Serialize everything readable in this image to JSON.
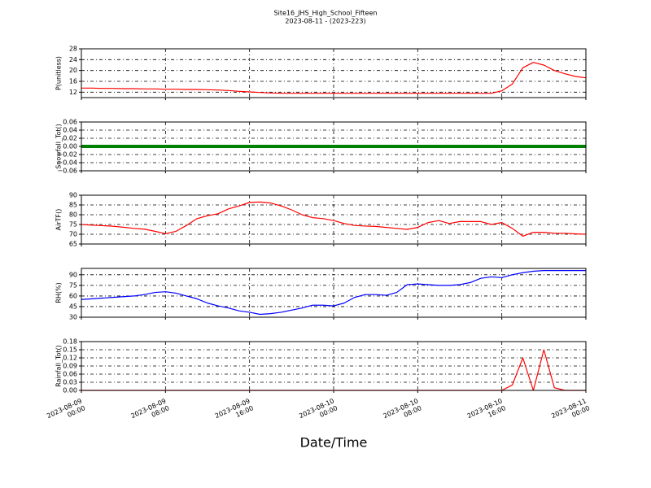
{
  "chart_data": [
    {
      "type": "line",
      "title": "Site16_JHS_High_School_Fifteen",
      "subtitle": "2023-08-11 - (2023-223)",
      "ylabel": "P(unitless)",
      "color": "#ff0000",
      "grid": true,
      "xlim": [
        "2023-08-09 00:00",
        "2023-08-11 00:00"
      ],
      "xticks": [
        "2023-08-09 00:00",
        "2023-08-09 08:00",
        "2023-08-09 16:00",
        "2023-08-10 00:00",
        "2023-08-10 08:00",
        "2023-08-10 16:00",
        "2023-08-11 00:00"
      ],
      "ylim": [
        10,
        28
      ],
      "yticks": [
        12,
        16,
        20,
        24,
        28
      ],
      "x": [
        "2023-08-09 00:00",
        "2023-08-09 01:00",
        "2023-08-09 02:00",
        "2023-08-09 03:00",
        "2023-08-09 04:00",
        "2023-08-09 05:00",
        "2023-08-09 06:00",
        "2023-08-09 07:00",
        "2023-08-09 08:00",
        "2023-08-09 09:00",
        "2023-08-09 10:00",
        "2023-08-09 11:00",
        "2023-08-09 12:00",
        "2023-08-09 13:00",
        "2023-08-09 14:00",
        "2023-08-09 15:00",
        "2023-08-09 16:00",
        "2023-08-09 17:00",
        "2023-08-09 18:00",
        "2023-08-09 19:00",
        "2023-08-09 20:00",
        "2023-08-09 21:00",
        "2023-08-09 22:00",
        "2023-08-09 23:00",
        "2023-08-10 00:00",
        "2023-08-10 01:00",
        "2023-08-10 02:00",
        "2023-08-10 03:00",
        "2023-08-10 04:00",
        "2023-08-10 05:00",
        "2023-08-10 06:00",
        "2023-08-10 07:00",
        "2023-08-10 08:00",
        "2023-08-10 09:00",
        "2023-08-10 10:00",
        "2023-08-10 11:00",
        "2023-08-10 12:00",
        "2023-08-10 13:00",
        "2023-08-10 14:00",
        "2023-08-10 15:00",
        "2023-08-10 16:00",
        "2023-08-10 17:00",
        "2023-08-10 18:00",
        "2023-08-10 19:00",
        "2023-08-10 20:00",
        "2023-08-10 21:00",
        "2023-08-10 22:00",
        "2023-08-10 23:00",
        "2023-08-11 00:00"
      ],
      "values": [
        13.5,
        13.5,
        13.4,
        13.4,
        13.3,
        13.3,
        13.2,
        13.2,
        13.1,
        13.1,
        13.0,
        13.0,
        12.9,
        12.8,
        12.6,
        12.3,
        12.1,
        11.9,
        11.7,
        11.6,
        11.6,
        11.6,
        11.6,
        11.6,
        11.6,
        11.6,
        11.6,
        11.6,
        11.6,
        11.6,
        11.6,
        11.6,
        11.6,
        11.6,
        11.6,
        11.6,
        11.6,
        11.6,
        11.6,
        11.6,
        12.5,
        15,
        21,
        23,
        22,
        20,
        18.8,
        17.8,
        17.3
      ]
    },
    {
      "type": "line",
      "ylabel": "Snowfall_Tot()",
      "color": "#008000",
      "grid": true,
      "xlim": [
        "2023-08-09 00:00",
        "2023-08-11 00:00"
      ],
      "xticks": [
        "2023-08-09 00:00",
        "2023-08-09 08:00",
        "2023-08-09 16:00",
        "2023-08-10 00:00",
        "2023-08-10 08:00",
        "2023-08-10 16:00",
        "2023-08-11 00:00"
      ],
      "ylim": [
        -0.06,
        0.06
      ],
      "yticks": [
        {
          "value": -0.06,
          "label": "−0.06"
        },
        {
          "value": -0.04,
          "label": "−0.04"
        },
        {
          "value": -0.02,
          "label": "−0.02"
        },
        {
          "value": 0,
          "label": "0.00"
        },
        0.02,
        0.04,
        0.06
      ],
      "x": [
        "2023-08-09 00:00",
        "2023-08-09 01:00",
        "2023-08-09 02:00",
        "2023-08-09 03:00",
        "2023-08-09 04:00",
        "2023-08-09 05:00",
        "2023-08-09 06:00",
        "2023-08-09 07:00",
        "2023-08-09 08:00",
        "2023-08-09 09:00",
        "2023-08-09 10:00",
        "2023-08-09 11:00",
        "2023-08-09 12:00",
        "2023-08-09 13:00",
        "2023-08-09 14:00",
        "2023-08-09 15:00",
        "2023-08-09 16:00",
        "2023-08-09 17:00",
        "2023-08-09 18:00",
        "2023-08-09 19:00",
        "2023-08-09 20:00",
        "2023-08-09 21:00",
        "2023-08-09 22:00",
        "2023-08-09 23:00",
        "2023-08-10 00:00",
        "2023-08-10 01:00",
        "2023-08-10 02:00",
        "2023-08-10 03:00",
        "2023-08-10 04:00",
        "2023-08-10 05:00",
        "2023-08-10 06:00",
        "2023-08-10 07:00",
        "2023-08-10 08:00",
        "2023-08-10 09:00",
        "2023-08-10 10:00",
        "2023-08-10 11:00",
        "2023-08-10 12:00",
        "2023-08-10 13:00",
        "2023-08-10 14:00",
        "2023-08-10 15:00",
        "2023-08-10 16:00",
        "2023-08-10 17:00",
        "2023-08-10 18:00",
        "2023-08-10 19:00",
        "2023-08-10 20:00",
        "2023-08-10 21:00",
        "2023-08-10 22:00",
        "2023-08-10 23:00",
        "2023-08-11 00:00"
      ],
      "values": [
        0,
        0,
        0,
        0,
        0,
        0,
        0,
        0,
        0,
        0,
        0,
        0,
        0,
        0,
        0,
        0,
        0,
        0,
        0,
        0,
        0,
        0,
        0,
        0,
        0,
        0,
        0,
        0,
        0,
        0,
        0,
        0,
        0,
        0,
        0,
        0,
        0,
        0,
        0,
        0,
        0,
        0,
        0,
        0,
        0,
        0,
        0,
        0,
        0
      ]
    },
    {
      "type": "line",
      "ylabel": "AirTF()",
      "color": "#ff0000",
      "grid": true,
      "xlim": [
        "2023-08-09 00:00",
        "2023-08-11 00:00"
      ],
      "xticks": [
        "2023-08-09 00:00",
        "2023-08-09 08:00",
        "2023-08-09 16:00",
        "2023-08-10 00:00",
        "2023-08-10 08:00",
        "2023-08-10 16:00",
        "2023-08-11 00:00"
      ],
      "ylim": [
        65,
        90
      ],
      "yticks": [
        65,
        70,
        75,
        80,
        85,
        90
      ],
      "x": [
        "2023-08-09 00:00",
        "2023-08-09 01:00",
        "2023-08-09 02:00",
        "2023-08-09 03:00",
        "2023-08-09 04:00",
        "2023-08-09 05:00",
        "2023-08-09 06:00",
        "2023-08-09 07:00",
        "2023-08-09 08:00",
        "2023-08-09 09:00",
        "2023-08-09 10:00",
        "2023-08-09 11:00",
        "2023-08-09 12:00",
        "2023-08-09 13:00",
        "2023-08-09 14:00",
        "2023-08-09 15:00",
        "2023-08-09 16:00",
        "2023-08-09 17:00",
        "2023-08-09 18:00",
        "2023-08-09 19:00",
        "2023-08-09 20:00",
        "2023-08-09 21:00",
        "2023-08-09 22:00",
        "2023-08-09 23:00",
        "2023-08-10 00:00",
        "2023-08-10 01:00",
        "2023-08-10 02:00",
        "2023-08-10 03:00",
        "2023-08-10 04:00",
        "2023-08-10 05:00",
        "2023-08-10 06:00",
        "2023-08-10 07:00",
        "2023-08-10 08:00",
        "2023-08-10 09:00",
        "2023-08-10 10:00",
        "2023-08-10 11:00",
        "2023-08-10 12:00",
        "2023-08-10 13:00",
        "2023-08-10 14:00",
        "2023-08-10 15:00",
        "2023-08-10 16:00",
        "2023-08-10 17:00",
        "2023-08-10 18:00",
        "2023-08-10 19:00",
        "2023-08-10 20:00",
        "2023-08-10 21:00",
        "2023-08-10 22:00",
        "2023-08-10 23:00",
        "2023-08-11 00:00"
      ],
      "values": [
        75,
        74.7,
        74.4,
        74.1,
        73.6,
        73,
        72.6,
        71.5,
        70.3,
        71.5,
        74.5,
        78,
        79.5,
        80.5,
        83,
        84.5,
        86.3,
        86.5,
        86,
        84.5,
        82.5,
        80,
        78.5,
        78,
        77,
        75.5,
        74.5,
        74.2,
        74,
        73.5,
        73,
        72.5,
        73.5,
        76,
        77,
        75.5,
        76.5,
        76.5,
        76.5,
        75,
        76,
        73,
        69,
        71,
        71,
        70.5,
        70.5,
        70.2,
        70
      ]
    },
    {
      "type": "line",
      "ylabel": "RH(%)",
      "color": "#0000ff",
      "grid": true,
      "xlim": [
        "2023-08-09 00:00",
        "2023-08-11 00:00"
      ],
      "xticks": [
        "2023-08-09 00:00",
        "2023-08-09 08:00",
        "2023-08-09 16:00",
        "2023-08-10 00:00",
        "2023-08-10 08:00",
        "2023-08-10 16:00",
        "2023-08-11 00:00"
      ],
      "ylim": [
        30,
        99
      ],
      "yticks": [
        30,
        45,
        60,
        75,
        90
      ],
      "x": [
        "2023-08-09 00:00",
        "2023-08-09 01:00",
        "2023-08-09 02:00",
        "2023-08-09 03:00",
        "2023-08-09 04:00",
        "2023-08-09 05:00",
        "2023-08-09 06:00",
        "2023-08-09 07:00",
        "2023-08-09 08:00",
        "2023-08-09 09:00",
        "2023-08-09 10:00",
        "2023-08-09 11:00",
        "2023-08-09 12:00",
        "2023-08-09 13:00",
        "2023-08-09 14:00",
        "2023-08-09 15:00",
        "2023-08-09 16:00",
        "2023-08-09 17:00",
        "2023-08-09 18:00",
        "2023-08-09 19:00",
        "2023-08-09 20:00",
        "2023-08-09 21:00",
        "2023-08-09 22:00",
        "2023-08-09 23:00",
        "2023-08-10 00:00",
        "2023-08-10 01:00",
        "2023-08-10 02:00",
        "2023-08-10 03:00",
        "2023-08-10 04:00",
        "2023-08-10 05:00",
        "2023-08-10 06:00",
        "2023-08-10 07:00",
        "2023-08-10 08:00",
        "2023-08-10 09:00",
        "2023-08-10 10:00",
        "2023-08-10 11:00",
        "2023-08-10 12:00",
        "2023-08-10 13:00",
        "2023-08-10 14:00",
        "2023-08-10 15:00",
        "2023-08-10 16:00",
        "2023-08-10 17:00",
        "2023-08-10 18:00",
        "2023-08-10 19:00",
        "2023-08-10 20:00",
        "2023-08-10 21:00",
        "2023-08-10 22:00",
        "2023-08-10 23:00",
        "2023-08-11 00:00"
      ],
      "values": [
        55,
        56,
        57,
        58,
        59,
        60,
        62,
        65,
        66,
        64,
        60,
        56,
        50,
        46,
        43,
        39,
        37,
        34,
        35,
        37,
        40,
        43,
        47,
        47,
        46,
        50,
        58,
        62,
        62,
        61,
        65,
        76,
        77,
        76,
        75,
        75,
        76,
        79,
        85,
        87,
        86,
        90,
        93,
        95,
        96,
        96,
        96,
        96,
        96
      ]
    },
    {
      "type": "line",
      "ylabel": "Rainfall_Tot()",
      "xlabel": "Date/Time",
      "color": "#ff0000",
      "grid": true,
      "xlim": [
        "2023-08-09 00:00",
        "2023-08-11 00:00"
      ],
      "xticks": [
        "2023-08-09 00:00",
        "2023-08-09 08:00",
        "2023-08-09 16:00",
        "2023-08-10 00:00",
        "2023-08-10 08:00",
        "2023-08-10 16:00",
        "2023-08-11 00:00"
      ],
      "ylim": [
        0,
        0.18
      ],
      "yticks": [
        {
          "value": 0,
          "label": "0.00"
        },
        0.03,
        0.06,
        0.09,
        0.12,
        0.15,
        0.18
      ],
      "x": [
        "2023-08-09 00:00",
        "2023-08-09 01:00",
        "2023-08-09 02:00",
        "2023-08-09 03:00",
        "2023-08-09 04:00",
        "2023-08-09 05:00",
        "2023-08-09 06:00",
        "2023-08-09 07:00",
        "2023-08-09 08:00",
        "2023-08-09 09:00",
        "2023-08-09 10:00",
        "2023-08-09 11:00",
        "2023-08-09 12:00",
        "2023-08-09 13:00",
        "2023-08-09 14:00",
        "2023-08-09 15:00",
        "2023-08-09 16:00",
        "2023-08-09 17:00",
        "2023-08-09 18:00",
        "2023-08-09 19:00",
        "2023-08-09 20:00",
        "2023-08-09 21:00",
        "2023-08-09 22:00",
        "2023-08-09 23:00",
        "2023-08-10 00:00",
        "2023-08-10 01:00",
        "2023-08-10 02:00",
        "2023-08-10 03:00",
        "2023-08-10 04:00",
        "2023-08-10 05:00",
        "2023-08-10 06:00",
        "2023-08-10 07:00",
        "2023-08-10 08:00",
        "2023-08-10 09:00",
        "2023-08-10 10:00",
        "2023-08-10 11:00",
        "2023-08-10 12:00",
        "2023-08-10 13:00",
        "2023-08-10 14:00",
        "2023-08-10 15:00",
        "2023-08-10 16:00",
        "2023-08-10 17:00",
        "2023-08-10 18:00",
        "2023-08-10 19:00",
        "2023-08-10 20:00",
        "2023-08-10 21:00",
        "2023-08-10 22:00",
        "2023-08-10 23:00",
        "2023-08-11 00:00"
      ],
      "values": [
        0,
        0,
        0,
        0,
        0,
        0,
        0,
        0,
        0,
        0,
        0,
        0,
        0,
        0,
        0,
        0,
        0,
        0,
        0,
        0,
        0,
        0,
        0,
        0,
        0,
        0,
        0,
        0,
        0,
        0,
        0,
        0,
        0,
        0,
        0,
        0,
        0,
        0,
        0,
        0,
        0,
        0.02,
        0.12,
        0,
        0.15,
        0.01,
        0,
        0,
        0
      ]
    }
  ]
}
